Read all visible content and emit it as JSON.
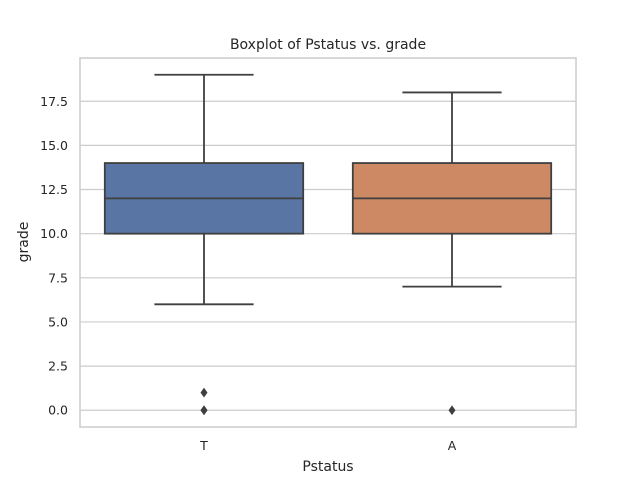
{
  "chart_data": {
    "type": "boxplot",
    "title": "Boxplot of Pstatus vs. grade",
    "xlabel": "Pstatus",
    "ylabel": "grade",
    "categories": [
      "T",
      "A"
    ],
    "boxes": [
      {
        "category": "T",
        "whisker_low": 6,
        "q1": 10,
        "median": 12,
        "q3": 14,
        "whisker_high": 19,
        "outliers": [
          1,
          0,
          0
        ],
        "color": "#5975a4"
      },
      {
        "category": "A",
        "whisker_low": 7,
        "q1": 10,
        "median": 12,
        "q3": 14,
        "whisker_high": 18,
        "outliers": [
          0
        ],
        "color": "#cc8963"
      }
    ],
    "ylim": [
      -0.95,
      19.95
    ],
    "yticks": [
      0.0,
      2.5,
      5.0,
      7.5,
      10.0,
      12.5,
      15.0,
      17.5
    ],
    "ytick_labels": [
      "0.0",
      "2.5",
      "5.0",
      "7.5",
      "10.0",
      "12.5",
      "15.0",
      "17.5"
    ],
    "grid": true,
    "line_color": "#3f3f3f",
    "grid_color": "#cccccc",
    "frame_color": "#cccccc"
  }
}
